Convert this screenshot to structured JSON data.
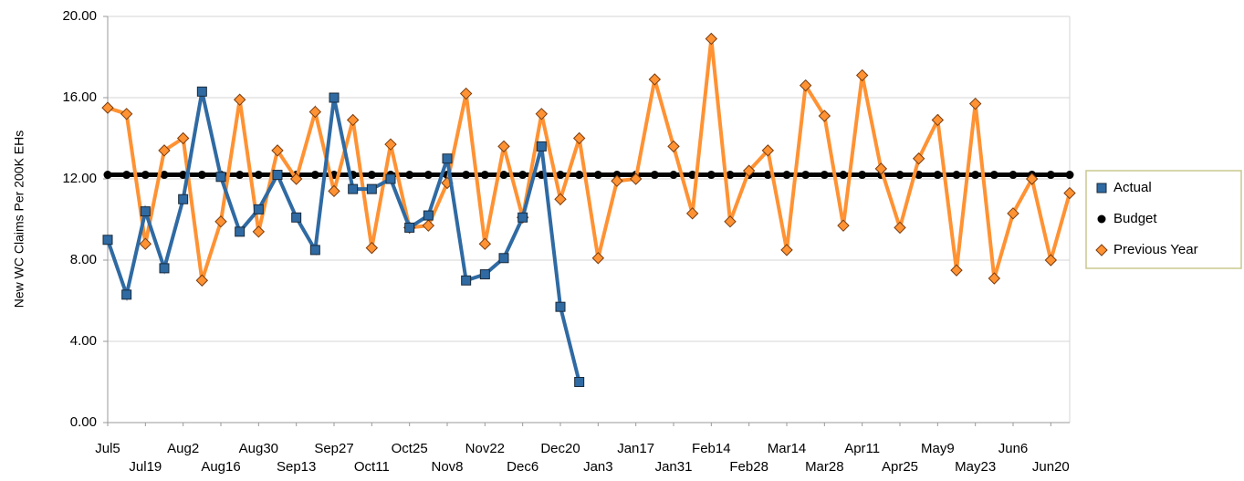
{
  "chart_data": {
    "type": "line",
    "y_label": "New WC Claims Per 200K EHs",
    "categories": [
      "Jul5",
      null,
      "Jul19",
      null,
      "Aug2",
      null,
      "Aug16",
      null,
      "Aug30",
      null,
      "Sep13",
      null,
      "Sep27",
      null,
      "Oct11",
      null,
      "Oct25",
      null,
      "Nov8",
      null,
      "Nov22",
      null,
      "Dec6",
      null,
      "Dec20",
      null,
      "Jan3",
      null,
      "Jan17",
      null,
      "Jan31",
      null,
      "Feb14",
      null,
      "Feb28",
      null,
      "Mar14",
      null,
      "Mar28",
      null,
      "Apr11",
      null,
      "Apr25",
      null,
      "May9",
      null,
      "May23",
      null,
      "Jun6",
      null,
      "Jun20",
      null
    ],
    "series": [
      {
        "name": "Actual",
        "color": "#2f6aa3",
        "marker": "square",
        "values": [
          9.0,
          6.3,
          10.4,
          7.6,
          11.0,
          16.3,
          12.1,
          9.4,
          10.5,
          12.2,
          10.1,
          8.5,
          16.0,
          11.5,
          11.5,
          12.0,
          9.6,
          10.2,
          13.0,
          7.0,
          7.3,
          8.1,
          10.1,
          13.6,
          5.7,
          2.0,
          null,
          null,
          null,
          null,
          null,
          null,
          null,
          null,
          null,
          null,
          null,
          null,
          null,
          null,
          null,
          null,
          null,
          null,
          null,
          null,
          null,
          null,
          null,
          null,
          null,
          null
        ]
      },
      {
        "name": "Budget",
        "color": "#000000",
        "marker": "circle",
        "values": [
          12.2,
          12.2,
          12.2,
          12.2,
          12.2,
          12.2,
          12.2,
          12.2,
          12.2,
          12.2,
          12.2,
          12.2,
          12.2,
          12.2,
          12.2,
          12.2,
          12.2,
          12.2,
          12.2,
          12.2,
          12.2,
          12.2,
          12.2,
          12.2,
          12.2,
          12.2,
          12.2,
          12.2,
          12.2,
          12.2,
          12.2,
          12.2,
          12.2,
          12.2,
          12.2,
          12.2,
          12.2,
          12.2,
          12.2,
          12.2,
          12.2,
          12.2,
          12.2,
          12.2,
          12.2,
          12.2,
          12.2,
          12.2,
          12.2,
          12.2,
          12.2,
          12.2
        ]
      },
      {
        "name": "Previous Year",
        "color": "#ff9233",
        "marker": "diamond",
        "values": [
          15.5,
          15.2,
          8.8,
          13.4,
          14.0,
          7.0,
          9.9,
          15.9,
          9.4,
          13.4,
          12.0,
          15.3,
          11.4,
          14.9,
          8.6,
          13.7,
          9.6,
          9.7,
          11.8,
          16.2,
          8.8,
          13.6,
          10.1,
          15.2,
          11.0,
          14.0,
          8.1,
          11.9,
          12.0,
          16.9,
          13.6,
          10.3,
          18.9,
          9.9,
          12.4,
          13.4,
          8.5,
          16.6,
          15.1,
          9.7,
          17.1,
          12.5,
          9.6,
          13.0,
          14.9,
          7.5,
          15.7,
          7.1,
          10.3,
          12.0,
          8.0,
          11.3
        ]
      }
    ],
    "ylim": [
      0,
      20
    ],
    "yticks": [
      {
        "value": 0,
        "label": "0.00"
      },
      {
        "value": 4,
        "label": "4.00"
      },
      {
        "value": 8,
        "label": "8.00"
      },
      {
        "value": 12,
        "label": "12.00"
      },
      {
        "value": 16,
        "label": "16.00"
      },
      {
        "value": 20,
        "label": "20.00"
      }
    ],
    "grid": true,
    "legend": "right"
  }
}
